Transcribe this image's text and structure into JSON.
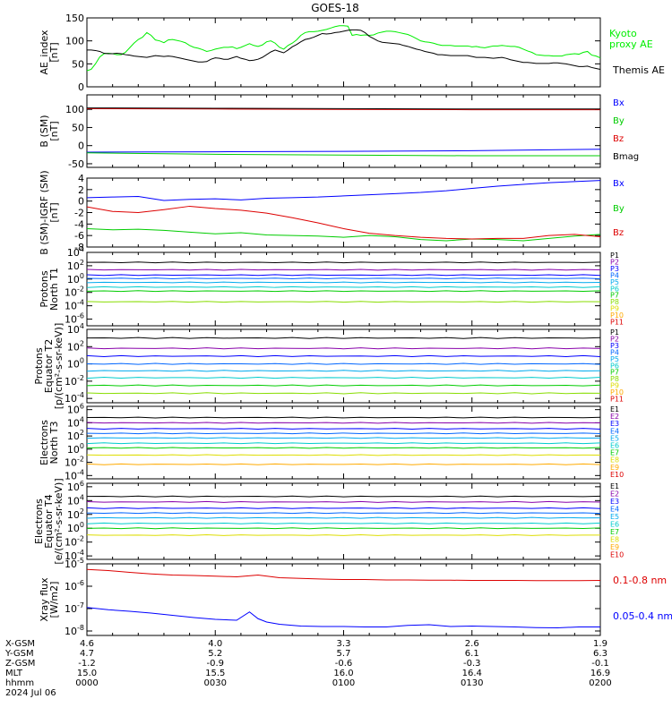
{
  "title": "GOES-18",
  "colors": {
    "black": "#000000",
    "blue": "#0000ff",
    "green": "#00cc00",
    "red": "#dd0000",
    "kyoto": "#00ee00"
  },
  "chart_data": [
    {
      "type": "line",
      "ylabel": [
        "AE_index",
        "[nT]"
      ],
      "yticks": [
        "150",
        "100",
        "50",
        "0"
      ],
      "ylim": [
        0,
        150
      ],
      "series": [
        {
          "name": "Kyoto proxy AE",
          "color": "#00ee00",
          "x": [
            0,
            1,
            2,
            3,
            4,
            5,
            6,
            7,
            8,
            9,
            10,
            11,
            12,
            13,
            14,
            15,
            16,
            17,
            18,
            19,
            20,
            21,
            22,
            23,
            24,
            25,
            26,
            27,
            28,
            29,
            30,
            31,
            32,
            33,
            34,
            35,
            36,
            37,
            38,
            39,
            40,
            41,
            42,
            43,
            44,
            45,
            46,
            47,
            48,
            49,
            50,
            51,
            52,
            53,
            54,
            55,
            56,
            57,
            58,
            59,
            60,
            61,
            62,
            63,
            64,
            65,
            66,
            67,
            68,
            69,
            70,
            71,
            72,
            73,
            74,
            75,
            76,
            77,
            78,
            79,
            80,
            81,
            82,
            83,
            84,
            85,
            86,
            87,
            88,
            89,
            90,
            91,
            92,
            93,
            94,
            95,
            96,
            97,
            98,
            99,
            100,
            101,
            102,
            103,
            104,
            105,
            106,
            107,
            108,
            109,
            110,
            111,
            112,
            113,
            114,
            115,
            116,
            117,
            118,
            119,
            120
          ],
          "y": [
            35,
            38,
            50,
            65,
            72,
            73,
            72,
            70,
            70,
            75,
            85,
            95,
            103,
            108,
            118,
            112,
            102,
            100,
            96,
            102,
            103,
            101,
            99,
            96,
            90,
            86,
            84,
            81,
            77,
            79,
            82,
            84,
            86,
            86,
            87,
            83,
            86,
            90,
            94,
            90,
            88,
            91,
            98,
            100,
            95,
            86,
            82,
            90,
            95,
            102,
            112,
            118,
            120,
            120,
            121,
            123,
            125,
            128,
            131,
            133,
            133,
            132,
            112,
            114,
            112,
            113,
            112,
            113,
            117,
            119,
            121,
            121,
            120,
            118,
            116,
            114,
            110,
            105,
            100,
            98,
            97,
            95,
            92,
            90,
            90,
            90,
            89,
            89,
            89,
            89,
            87,
            88,
            86,
            85,
            87,
            89,
            89,
            90,
            89,
            88,
            88,
            86,
            82,
            78,
            75,
            70,
            69,
            68,
            68,
            67,
            67,
            67,
            70,
            71,
            72,
            71,
            75,
            77,
            69,
            67,
            63
          ]
        },
        {
          "name": "Themis AE",
          "color": "#000000",
          "x": [
            0,
            1,
            2,
            3,
            4,
            5,
            6,
            7,
            8,
            9,
            10,
            11,
            12,
            13,
            14,
            15,
            16,
            17,
            18,
            19,
            20,
            21,
            22,
            23,
            24,
            25,
            26,
            27,
            28,
            29,
            30,
            31,
            32,
            33,
            34,
            35,
            36,
            37,
            38,
            39,
            40,
            41,
            42,
            43,
            44,
            45,
            46,
            47,
            48,
            49,
            50,
            51,
            52,
            53,
            54,
            55,
            56,
            57,
            58,
            59,
            60,
            61,
            62,
            63,
            64,
            65,
            66,
            67,
            68,
            69,
            70,
            71,
            72,
            73,
            74,
            75,
            76,
            77,
            78,
            79,
            80,
            81,
            82,
            83,
            84,
            85,
            86,
            87,
            88,
            89,
            90,
            91,
            92,
            93,
            94,
            95,
            96,
            97,
            98,
            99,
            100,
            101,
            102,
            103,
            104,
            105,
            106,
            107,
            108,
            109,
            110,
            111,
            112,
            113,
            114,
            115,
            116,
            117,
            118,
            119,
            120
          ],
          "y": [
            80,
            80,
            79,
            77,
            73,
            72,
            72,
            73,
            72,
            70,
            69,
            67,
            66,
            65,
            64,
            66,
            68,
            67,
            66,
            67,
            66,
            64,
            62,
            60,
            58,
            56,
            54,
            54,
            55,
            60,
            63,
            62,
            60,
            60,
            63,
            66,
            62,
            60,
            57,
            58,
            60,
            64,
            70,
            76,
            80,
            77,
            74,
            80,
            87,
            92,
            98,
            103,
            105,
            108,
            112,
            116,
            115,
            116,
            118,
            119,
            121,
            123,
            124,
            124,
            123,
            118,
            110,
            105,
            100,
            97,
            96,
            95,
            94,
            93,
            90,
            88,
            85,
            82,
            80,
            77,
            75,
            73,
            70,
            70,
            69,
            68,
            68,
            68,
            68,
            68,
            66,
            64,
            64,
            64,
            63,
            62,
            63,
            64,
            62,
            59,
            57,
            55,
            53,
            53,
            52,
            51,
            51,
            51,
            51,
            52,
            52,
            51,
            50,
            48,
            46,
            44,
            44,
            45,
            42,
            40,
            38
          ]
        }
      ]
    },
    {
      "type": "line",
      "ylabel": [
        "B (SM)",
        "[nT]"
      ],
      "yticks": [
        "100",
        "50",
        "0",
        "-50"
      ],
      "ylim": [
        -60,
        140
      ],
      "series": [
        {
          "name": "Bx",
          "color": "#0000ff",
          "x": [
            0,
            30,
            60,
            90,
            120
          ],
          "y": [
            -18,
            -17,
            -16,
            -14,
            -10
          ]
        },
        {
          "name": "By",
          "color": "#00cc00",
          "x": [
            0,
            30,
            60,
            90,
            120
          ],
          "y": [
            -20,
            -24,
            -26,
            -28,
            -28
          ]
        },
        {
          "name": "Bz",
          "color": "#dd0000",
          "x": [
            0,
            30,
            60,
            90,
            120
          ],
          "y": [
            102,
            101,
            100,
            99,
            99
          ]
        },
        {
          "name": "Bmag",
          "color": "#000000",
          "x": [
            0,
            30,
            60,
            90,
            120
          ],
          "y": [
            104,
            103,
            102,
            101,
            101
          ]
        }
      ]
    },
    {
      "type": "line",
      "ylabel": [
        "B (SM)-IGRF (SM)",
        "[nT]"
      ],
      "yticks": [
        "4",
        "2",
        "0",
        "-2",
        "-4",
        "-6",
        "-8"
      ],
      "ylim": [
        -8,
        4
      ],
      "series": [
        {
          "name": "Bx",
          "color": "#0000ff",
          "x": [
            0,
            6,
            12,
            18,
            24,
            30,
            36,
            42,
            48,
            54,
            60,
            66,
            72,
            78,
            84,
            90,
            96,
            102,
            108,
            114,
            120
          ],
          "y": [
            0.6,
            0.7,
            0.8,
            0.1,
            0.3,
            0.4,
            0.2,
            0.5,
            0.6,
            0.7,
            0.9,
            1.1,
            1.3,
            1.5,
            1.8,
            2.2,
            2.6,
            2.9,
            3.2,
            3.4,
            3.6
          ]
        },
        {
          "name": "By",
          "color": "#00cc00",
          "x": [
            0,
            6,
            12,
            18,
            24,
            30,
            36,
            42,
            48,
            54,
            60,
            66,
            72,
            78,
            84,
            90,
            96,
            102,
            108,
            114,
            120
          ],
          "y": [
            -4.8,
            -5.0,
            -4.9,
            -5.1,
            -5.4,
            -5.7,
            -5.5,
            -5.9,
            -6.0,
            -6.1,
            -6.3,
            -6.0,
            -6.2,
            -6.7,
            -6.9,
            -6.6,
            -6.7,
            -6.9,
            -6.5,
            -6.1,
            -5.8
          ]
        },
        {
          "name": "Bz",
          "color": "#dd0000",
          "x": [
            0,
            6,
            12,
            18,
            24,
            30,
            36,
            42,
            48,
            54,
            60,
            66,
            72,
            78,
            84,
            90,
            96,
            102,
            108,
            114,
            120
          ],
          "y": [
            -1.0,
            -1.8,
            -2.0,
            -1.5,
            -0.9,
            -1.3,
            -1.6,
            -2.1,
            -2.9,
            -3.8,
            -4.8,
            -5.6,
            -6.0,
            -6.3,
            -6.5,
            -6.6,
            -6.5,
            -6.5,
            -6.0,
            -5.8,
            -6.2
          ]
        }
      ]
    },
    {
      "type": "line",
      "ylog": true,
      "ylabel": [
        "Protons",
        "North T1"
      ],
      "yticks": [
        "10^4",
        "10^2",
        "10^0",
        "10^-2",
        "10^-4",
        "10^-6"
      ],
      "ylim_exp": [
        -7,
        4
      ],
      "legend": [
        "P1",
        "P2",
        "P3",
        "P4",
        "P5",
        "P6",
        "P7",
        "P8",
        "P9",
        "P10",
        "P11"
      ],
      "legend_colors": [
        "#000000",
        "#8800aa",
        "#0000ff",
        "#0066ff",
        "#00aaee",
        "#00cccc",
        "#00cc00",
        "#88dd00",
        "#dddd00",
        "#ffaa00",
        "#dd0000"
      ],
      "levels_exp": [
        2.5,
        1.4,
        0.6,
        0.1,
        -0.5,
        -1.2,
        -1.8,
        -3.4
      ]
    },
    {
      "type": "line",
      "ylog": true,
      "ylabel": [
        "Protons",
        "Equator T2",
        "[p/(cm²-s-sr-keV)]"
      ],
      "yticks": [
        "10^4",
        "10^2",
        "10^0",
        "10^-2",
        "10^-4"
      ],
      "ylim_exp": [
        -4.5,
        4
      ],
      "legend": [
        "P1",
        "P2",
        "P3",
        "P4",
        "P5",
        "P6",
        "P7",
        "P8",
        "P9",
        "P10",
        "P11"
      ],
      "legend_colors": [
        "#000000",
        "#8800aa",
        "#0000ff",
        "#0066ff",
        "#00aaee",
        "#00cccc",
        "#00cc00",
        "#88dd00",
        "#dddd00",
        "#ffaa00",
        "#dd0000"
      ],
      "levels_exp": [
        3.0,
        1.8,
        0.9,
        0.0,
        -0.8,
        -1.6,
        -2.5,
        -3.4
      ]
    },
    {
      "type": "line",
      "ylog": true,
      "ylabel": [
        "Electrons",
        "North T3"
      ],
      "yticks": [
        "10^6",
        "10^4",
        "10^2",
        "10^0",
        "10^-2",
        "10^-4"
      ],
      "ylim_exp": [
        -4.5,
        6.5
      ],
      "legend": [
        "E1",
        "E2",
        "E3",
        "E4",
        "E5",
        "E6",
        "E7",
        "E8",
        "E9",
        "E10"
      ],
      "legend_colors": [
        "#000000",
        "#8800aa",
        "#0000ff",
        "#0066ff",
        "#00aaee",
        "#00cccc",
        "#00cc00",
        "#dddd00",
        "#ffaa00",
        "#dd0000"
      ],
      "levels_exp": [
        4.8,
        4.0,
        3.1,
        2.4,
        1.7,
        0.9,
        0.2,
        -0.9,
        -2.3
      ]
    },
    {
      "type": "line",
      "ylog": true,
      "ylabel": [
        "Electrons",
        "Equator T4",
        "[e/(cm²-s-sr-keV)]"
      ],
      "yticks": [
        "10^6",
        "10^4",
        "10^2",
        "10^0",
        "10^-2",
        "10^-4"
      ],
      "ylim_exp": [
        -4.5,
        6.5
      ],
      "legend": [
        "E1",
        "E2",
        "E3",
        "E4",
        "E5",
        "E6",
        "E7",
        "E8",
        "E9",
        "E10"
      ],
      "legend_colors": [
        "#000000",
        "#8800aa",
        "#0000ff",
        "#0066ff",
        "#00aaee",
        "#00cccc",
        "#00cc00",
        "#dddd00",
        "#ffaa00",
        "#dd0000"
      ],
      "levels_exp": [
        4.6,
        3.8,
        2.9,
        2.2,
        1.5,
        0.7,
        0.0,
        -1.0
      ]
    },
    {
      "type": "line",
      "ylog": true,
      "ylabel": [
        "Xray flux",
        "[W/m2]"
      ],
      "yticks": [
        "10^-5",
        "10^-6",
        "10^-7",
        "10^-8"
      ],
      "ylim_exp": [
        -8.2,
        -5
      ],
      "series": [
        {
          "name": "0.1-0.8 nm",
          "color": "#dd0000",
          "x": [
            0,
            5,
            10,
            15,
            20,
            25,
            30,
            35,
            40,
            45,
            50,
            55,
            60,
            65,
            70,
            75,
            80,
            85,
            90,
            95,
            100,
            105,
            110,
            115,
            120
          ],
          "y": [
            -5.25,
            -5.3,
            -5.38,
            -5.45,
            -5.5,
            -5.52,
            -5.55,
            -5.58,
            -5.5,
            -5.62,
            -5.65,
            -5.68,
            -5.7,
            -5.7,
            -5.72,
            -5.72,
            -5.73,
            -5.73,
            -5.74,
            -5.74,
            -5.74,
            -5.75,
            -5.75,
            -5.75,
            -5.74
          ]
        },
        {
          "name": "0.05-0.4 nm",
          "color": "#0000ff",
          "x": [
            0,
            5,
            10,
            15,
            20,
            25,
            30,
            35,
            38,
            40,
            42,
            45,
            50,
            55,
            60,
            65,
            70,
            75,
            80,
            85,
            90,
            95,
            100,
            105,
            110,
            115,
            120
          ],
          "y": [
            -6.95,
            -7.05,
            -7.12,
            -7.2,
            -7.3,
            -7.4,
            -7.48,
            -7.52,
            -7.15,
            -7.45,
            -7.6,
            -7.7,
            -7.78,
            -7.8,
            -7.8,
            -7.82,
            -7.82,
            -7.75,
            -7.72,
            -7.8,
            -7.78,
            -7.8,
            -7.82,
            -7.85,
            -7.86,
            -7.82,
            -7.82
          ]
        }
      ]
    }
  ],
  "xaxis": {
    "row_labels": [
      "X-GSM",
      "Y-GSM",
      "Z-GSM",
      "MLT",
      "hhmm",
      "2024 Jul 06"
    ],
    "ticks": [
      {
        "vals": [
          "4.6",
          "4.7",
          "-1.2",
          "15.0",
          "0000"
        ]
      },
      {
        "vals": [
          "4.0",
          "5.2",
          "-0.9",
          "15.5",
          "0030"
        ]
      },
      {
        "vals": [
          "3.3",
          "5.7",
          "-0.6",
          "16.0",
          "0100"
        ]
      },
      {
        "vals": [
          "2.6",
          "6.1",
          "-0.3",
          "16.4",
          "0130"
        ]
      },
      {
        "vals": [
          "1.9",
          "6.3",
          "-0.1",
          "16.9",
          "0200"
        ]
      }
    ]
  }
}
